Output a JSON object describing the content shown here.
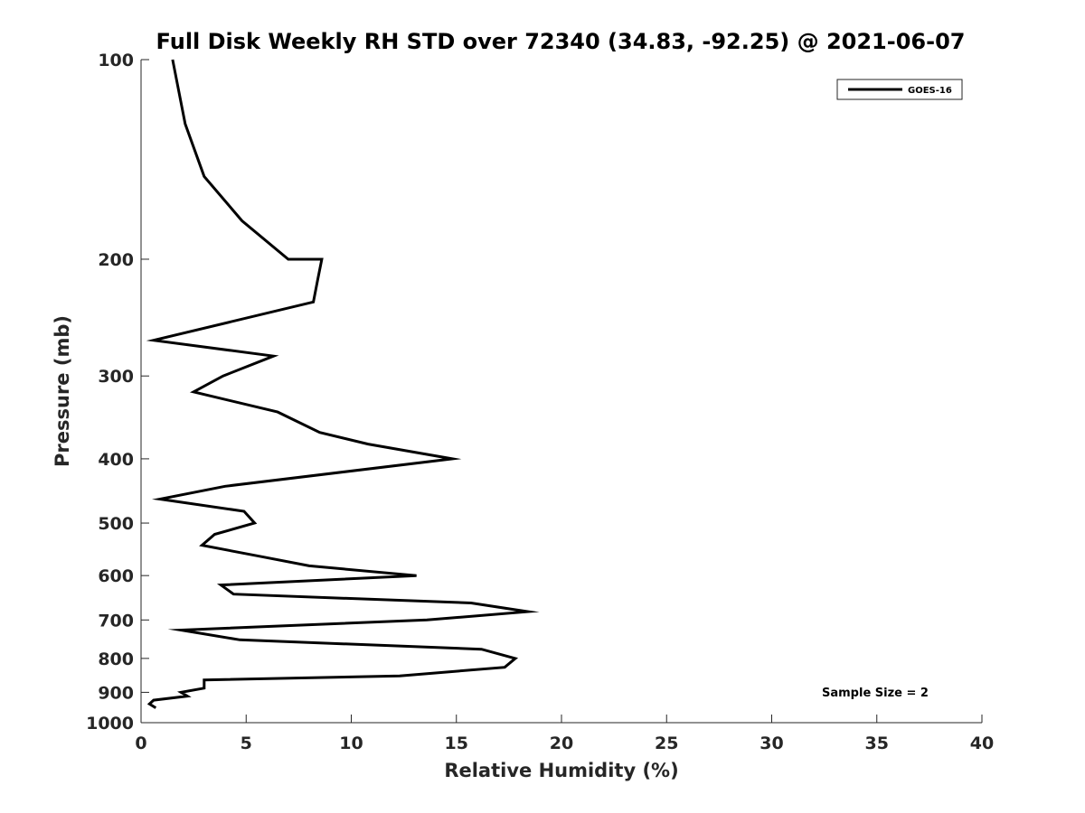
{
  "chart_data": {
    "type": "line",
    "title": "Full Disk Weekly RH STD over 72340 (34.83, -92.25) @ 2021-06-07",
    "xlabel": "Relative Humidity (%)",
    "ylabel": "Pressure (mb)",
    "xlim": [
      0,
      40
    ],
    "ylim": [
      100,
      1000
    ],
    "y_scale": "log",
    "y_reversed": true,
    "grid": false,
    "legend_position": "top-right",
    "x_ticks": [
      "0",
      "5",
      "10",
      "15",
      "20",
      "25",
      "30",
      "35",
      "40"
    ],
    "y_ticks": [
      "100",
      "200",
      "300",
      "400",
      "500",
      "600",
      "700",
      "800",
      "900",
      "1000"
    ],
    "annotation": "Sample Size = 2",
    "series": [
      {
        "name": "GOES-16",
        "color": "#000000",
        "points": [
          [
            1.5,
            100
          ],
          [
            2.1,
            125
          ],
          [
            3.0,
            150
          ],
          [
            4.8,
            175
          ],
          [
            7.0,
            200
          ],
          [
            8.6,
            200
          ],
          [
            8.4,
            215
          ],
          [
            8.2,
            232
          ],
          [
            0.6,
            265
          ],
          [
            6.3,
            280
          ],
          [
            3.9,
            300
          ],
          [
            2.5,
            317
          ],
          [
            6.5,
            340
          ],
          [
            8.5,
            365
          ],
          [
            10.8,
            380
          ],
          [
            14.8,
            400
          ],
          [
            4.0,
            440
          ],
          [
            0.9,
            460
          ],
          [
            4.9,
            480
          ],
          [
            5.4,
            500
          ],
          [
            3.5,
            520
          ],
          [
            2.9,
            540
          ],
          [
            5.5,
            560
          ],
          [
            8.0,
            580
          ],
          [
            13.1,
            600
          ],
          [
            3.8,
            620
          ],
          [
            4.4,
            640
          ],
          [
            15.7,
            660
          ],
          [
            18.4,
            680
          ],
          [
            13.6,
            700
          ],
          [
            1.9,
            725
          ],
          [
            4.7,
            750
          ],
          [
            16.2,
            775
          ],
          [
            17.8,
            800
          ],
          [
            17.3,
            825
          ],
          [
            12.3,
            850
          ],
          [
            3.0,
            862
          ],
          [
            3.0,
            887
          ],
          [
            1.9,
            900
          ],
          [
            2.2,
            912
          ],
          [
            0.6,
            925
          ],
          [
            0.4,
            937
          ],
          [
            0.7,
            950
          ]
        ]
      }
    ]
  }
}
